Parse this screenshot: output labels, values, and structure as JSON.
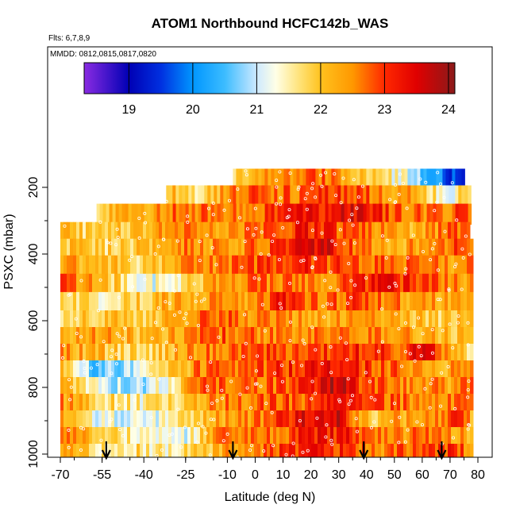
{
  "chart_data": {
    "type": "heatmap",
    "title": "ATOM1 Northbound HCFC142b_WAS",
    "subtitle_flights": "Flts: 6,7,8,9",
    "subtitle_dates": "MMDD: 0812,0815,0817,0820",
    "xlabel": "Latitude (deg N)",
    "ylabel": "PSXC (mbar)",
    "xlim": [
      -70,
      80
    ],
    "ylim": [
      1020,
      120
    ],
    "x_ticks": [
      -70,
      -55,
      -40,
      -25,
      -10,
      0,
      10,
      20,
      30,
      40,
      50,
      60,
      70,
      80
    ],
    "y_ticks": [
      200,
      400,
      600,
      800,
      1000
    ],
    "colorbar": {
      "min": 18.3,
      "max": 24.1,
      "ticks": [
        19,
        20,
        21,
        22,
        23,
        24
      ],
      "stops": [
        {
          "v": 18.3,
          "c": "#8a2be2"
        },
        {
          "v": 19.0,
          "c": "#0000b4"
        },
        {
          "v": 19.5,
          "c": "#0030e0"
        },
        {
          "v": 20.0,
          "c": "#0096ff"
        },
        {
          "v": 20.5,
          "c": "#3cbcff"
        },
        {
          "v": 21.0,
          "c": "#cde9ff"
        },
        {
          "v": 21.3,
          "c": "#ffffe6"
        },
        {
          "v": 21.7,
          "c": "#ffe070"
        },
        {
          "v": 22.0,
          "c": "#ffc21e"
        },
        {
          "v": 22.5,
          "c": "#ff9800"
        },
        {
          "v": 23.0,
          "c": "#ff2800"
        },
        {
          "v": 23.5,
          "c": "#e00000"
        },
        {
          "v": 24.1,
          "c": "#8b1a1a"
        }
      ]
    },
    "rows": [
      {
        "p": 175,
        "segments": [
          [
            -8,
            21.8
          ],
          [
            5,
            22.4
          ],
          [
            20,
            22.9
          ],
          [
            30,
            22.5
          ],
          [
            45,
            21.6
          ],
          [
            55,
            21.2
          ],
          [
            62,
            20.3
          ],
          [
            70,
            19.6
          ],
          [
            74,
            19.2
          ]
        ]
      },
      {
        "p": 225,
        "segments": [
          [
            -30,
            22.2
          ],
          [
            -20,
            21.5
          ],
          [
            -10,
            22.5
          ],
          [
            0,
            22.9
          ],
          [
            15,
            22.6
          ],
          [
            30,
            23.0
          ],
          [
            45,
            22.6
          ],
          [
            60,
            22.2
          ],
          [
            70,
            20.8
          ],
          [
            75,
            22.1
          ]
        ]
      },
      {
        "p": 280,
        "segments": [
          [
            -55,
            21.9
          ],
          [
            -40,
            22.3
          ],
          [
            -25,
            22.8
          ],
          [
            -10,
            22.4
          ],
          [
            5,
            22.9
          ],
          [
            20,
            23.2
          ],
          [
            35,
            23.4
          ],
          [
            50,
            22.9
          ],
          [
            65,
            22.5
          ],
          [
            75,
            22.9
          ]
        ]
      },
      {
        "p": 335,
        "segments": [
          [
            -70,
            22.0
          ],
          [
            -55,
            21.7
          ],
          [
            -40,
            22.1
          ],
          [
            -25,
            22.5
          ],
          [
            -10,
            22.2
          ],
          [
            5,
            22.9
          ],
          [
            20,
            23.2
          ],
          [
            38,
            22.7
          ],
          [
            55,
            22.2
          ],
          [
            70,
            22.6
          ],
          [
            76,
            23.1
          ]
        ]
      },
      {
        "p": 385,
        "segments": [
          [
            -70,
            22.1
          ],
          [
            -55,
            21.8
          ],
          [
            -40,
            22.0
          ],
          [
            -25,
            22.6
          ],
          [
            -10,
            22.3
          ],
          [
            5,
            22.8
          ],
          [
            25,
            23.6
          ],
          [
            40,
            22.4
          ],
          [
            55,
            22.3
          ],
          [
            70,
            22.8
          ],
          [
            77,
            22.9
          ]
        ]
      },
      {
        "p": 435,
        "segments": [
          [
            -70,
            22.4
          ],
          [
            -55,
            22.2
          ],
          [
            -40,
            21.8
          ],
          [
            -25,
            22.4
          ],
          [
            -10,
            22.6
          ],
          [
            5,
            22.9
          ],
          [
            20,
            23.1
          ],
          [
            40,
            22.7
          ],
          [
            55,
            22.8
          ],
          [
            70,
            22.4
          ],
          [
            77,
            22.6
          ]
        ]
      },
      {
        "p": 490,
        "segments": [
          [
            -70,
            22.7
          ],
          [
            -55,
            22.3
          ],
          [
            -42,
            21.1
          ],
          [
            -28,
            21.5
          ],
          [
            -15,
            22.4
          ],
          [
            0,
            22.7
          ],
          [
            15,
            22.5
          ],
          [
            30,
            22.6
          ],
          [
            45,
            23.3
          ],
          [
            60,
            22.9
          ],
          [
            72,
            22.5
          ],
          [
            77,
            22.4
          ]
        ]
      },
      {
        "p": 545,
        "segments": [
          [
            -70,
            22.3
          ],
          [
            -58,
            21.4
          ],
          [
            -45,
            21.8
          ],
          [
            -30,
            22.2
          ],
          [
            -15,
            22.5
          ],
          [
            0,
            22.4
          ],
          [
            10,
            23.3
          ],
          [
            20,
            22.6
          ],
          [
            35,
            22.9
          ],
          [
            55,
            22.4
          ],
          [
            70,
            22.2
          ],
          [
            77,
            22.6
          ]
        ]
      },
      {
        "p": 600,
        "segments": [
          [
            -70,
            21.9
          ],
          [
            -55,
            22.1
          ],
          [
            -40,
            21.9
          ],
          [
            -25,
            22.4
          ],
          [
            -12,
            22.9
          ],
          [
            0,
            22.5
          ],
          [
            15,
            22.4
          ],
          [
            30,
            22.3
          ],
          [
            45,
            22.3
          ],
          [
            60,
            22.1
          ],
          [
            70,
            21.8
          ],
          [
            77,
            22.4
          ]
        ]
      },
      {
        "p": 650,
        "segments": [
          [
            -70,
            22.2
          ],
          [
            -55,
            22.4
          ],
          [
            -40,
            22.0
          ],
          [
            -25,
            22.5
          ],
          [
            -10,
            22.8
          ],
          [
            5,
            22.5
          ],
          [
            20,
            22.7
          ],
          [
            35,
            22.6
          ],
          [
            50,
            22.4
          ],
          [
            65,
            22.2
          ],
          [
            77,
            22.0
          ]
        ]
      },
      {
        "p": 700,
        "segments": [
          [
            -70,
            22.4
          ],
          [
            -55,
            22.1
          ],
          [
            -40,
            21.6
          ],
          [
            -25,
            22.4
          ],
          [
            -10,
            22.7
          ],
          [
            5,
            22.9
          ],
          [
            20,
            23.0
          ],
          [
            35,
            23.1
          ],
          [
            50,
            22.9
          ],
          [
            62,
            23.4
          ],
          [
            72,
            22.0
          ],
          [
            77,
            21.7
          ]
        ]
      },
      {
        "p": 750,
        "segments": [
          [
            -70,
            22.3
          ],
          [
            -58,
            20.5
          ],
          [
            -48,
            20.9
          ],
          [
            -35,
            21.4
          ],
          [
            -20,
            22.6
          ],
          [
            -5,
            22.7
          ],
          [
            10,
            23.0
          ],
          [
            25,
            23.4
          ],
          [
            40,
            23.0
          ],
          [
            55,
            22.6
          ],
          [
            70,
            22.3
          ],
          [
            77,
            22.5
          ]
        ]
      },
      {
        "p": 800,
        "segments": [
          [
            -70,
            22.1
          ],
          [
            -55,
            21.1
          ],
          [
            -40,
            20.9
          ],
          [
            -28,
            21.7
          ],
          [
            -18,
            23.1
          ],
          [
            -10,
            22.5
          ],
          [
            5,
            22.7
          ],
          [
            20,
            23.1
          ],
          [
            30,
            23.8
          ],
          [
            40,
            22.8
          ],
          [
            55,
            22.5
          ],
          [
            70,
            22.4
          ],
          [
            77,
            22.6
          ]
        ]
      },
      {
        "p": 850,
        "segments": [
          [
            -70,
            22.5
          ],
          [
            -55,
            21.8
          ],
          [
            -40,
            21.5
          ],
          [
            -25,
            22.0
          ],
          [
            -10,
            22.6
          ],
          [
            5,
            22.8
          ],
          [
            20,
            22.9
          ],
          [
            35,
            23.2
          ],
          [
            50,
            22.7
          ],
          [
            65,
            22.4
          ],
          [
            77,
            22.6
          ]
        ]
      },
      {
        "p": 900,
        "segments": [
          [
            -70,
            22.2
          ],
          [
            -55,
            21.2
          ],
          [
            -40,
            21.1
          ],
          [
            -25,
            21.8
          ],
          [
            -10,
            22.4
          ],
          [
            5,
            22.6
          ],
          [
            15,
            23.4
          ],
          [
            30,
            23.5
          ],
          [
            42,
            21.9
          ],
          [
            55,
            22.4
          ],
          [
            67,
            22.6
          ],
          [
            72,
            23.2
          ],
          [
            77,
            22.3
          ]
        ]
      },
      {
        "p": 950,
        "segments": [
          [
            -70,
            22.6
          ],
          [
            -55,
            21.8
          ],
          [
            -40,
            21.5
          ],
          [
            -25,
            21.2
          ],
          [
            -12,
            22.6
          ],
          [
            0,
            22.5
          ],
          [
            10,
            22.8
          ],
          [
            20,
            23.3
          ],
          [
            35,
            23.1
          ],
          [
            48,
            22.3
          ],
          [
            60,
            22.8
          ],
          [
            72,
            22.4
          ],
          [
            77,
            22.2
          ]
        ]
      },
      {
        "p": 1000,
        "segments": [
          [
            -65,
            22.3
          ],
          [
            -55,
            21.6
          ],
          [
            -45,
            21.8
          ],
          [
            -30,
            21.4
          ],
          [
            -20,
            22.0
          ],
          [
            -5,
            22.4
          ],
          [
            10,
            22.9
          ],
          [
            20,
            23.3
          ],
          [
            35,
            23.0
          ],
          [
            45,
            22.6
          ],
          [
            60,
            22.8
          ],
          [
            72,
            23.1
          ],
          [
            77,
            22.4
          ]
        ]
      }
    ],
    "row_extents": [
      {
        "p": 175,
        "xmin": -8,
        "xmax": 75
      },
      {
        "p": 225,
        "xmin": -32,
        "xmax": 77
      },
      {
        "p": 280,
        "xmin": -57,
        "xmax": 77
      },
      {
        "p": 335,
        "xmin": -70,
        "xmax": 77
      },
      {
        "p": 385,
        "xmin": -70,
        "xmax": 78
      },
      {
        "p": 435,
        "xmin": -70,
        "xmax": 78
      },
      {
        "p": 490,
        "xmin": -70,
        "xmax": 78
      },
      {
        "p": 545,
        "xmin": -70,
        "xmax": 78
      },
      {
        "p": 600,
        "xmin": -70,
        "xmax": 78
      },
      {
        "p": 650,
        "xmin": -70,
        "xmax": 78
      },
      {
        "p": 700,
        "xmin": -70,
        "xmax": 78
      },
      {
        "p": 750,
        "xmin": -70,
        "xmax": 78
      },
      {
        "p": 800,
        "xmin": -70,
        "xmax": 78
      },
      {
        "p": 850,
        "xmin": -70,
        "xmax": 78
      },
      {
        "p": 900,
        "xmin": -70,
        "xmax": 78
      },
      {
        "p": 950,
        "xmin": -70,
        "xmax": 78
      },
      {
        "p": 1000,
        "xmin": -70,
        "xmax": 78
      }
    ],
    "arrows_lat": [
      -53.5,
      -8,
      39,
      67
    ]
  }
}
